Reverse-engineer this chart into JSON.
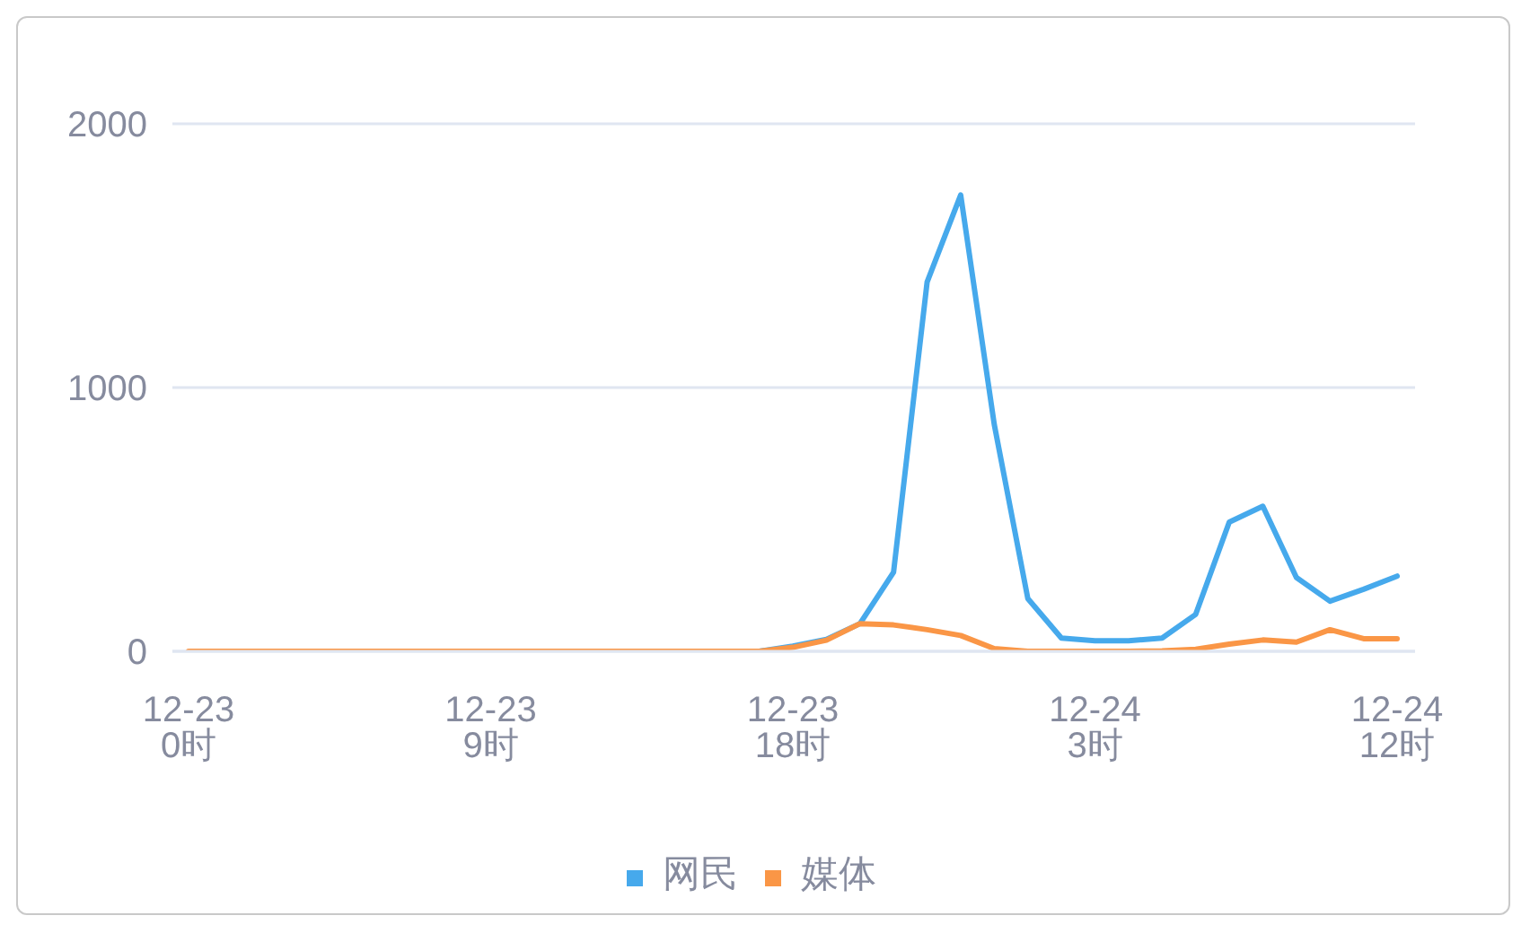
{
  "chart_data": {
    "type": "line",
    "categories": [
      "12-23 0时",
      null,
      null,
      null,
      null,
      null,
      null,
      null,
      null,
      "12-23 9时",
      null,
      null,
      null,
      null,
      null,
      null,
      null,
      null,
      "12-23 18时",
      null,
      null,
      null,
      null,
      null,
      null,
      null,
      null,
      "12-24 3时",
      null,
      null,
      null,
      null,
      null,
      null,
      null,
      null,
      "12-24 12时"
    ],
    "series": [
      {
        "name": "网民",
        "color": "#46a9ec",
        "values": [
          null,
          null,
          null,
          null,
          null,
          null,
          null,
          null,
          null,
          null,
          null,
          null,
          null,
          null,
          null,
          null,
          0,
          0,
          20,
          45,
          105,
          300,
          1400,
          1730,
          860,
          200,
          50,
          40,
          40,
          50,
          140,
          490,
          550,
          280,
          190,
          235,
          285
        ]
      },
      {
        "name": "媒体",
        "color": "#fa9646",
        "values": [
          0,
          0,
          0,
          0,
          0,
          0,
          0,
          0,
          0,
          0,
          0,
          0,
          0,
          0,
          0,
          0,
          0,
          0,
          15,
          42,
          105,
          100,
          82,
          60,
          10,
          0,
          0,
          0,
          0,
          2,
          8,
          27,
          43,
          35,
          82,
          48,
          48
        ]
      }
    ],
    "ylim": [
      0,
      2000
    ],
    "yticks": [
      0,
      1000,
      2000
    ],
    "grid": "y",
    "legend": "bottom",
    "marker": "none"
  }
}
